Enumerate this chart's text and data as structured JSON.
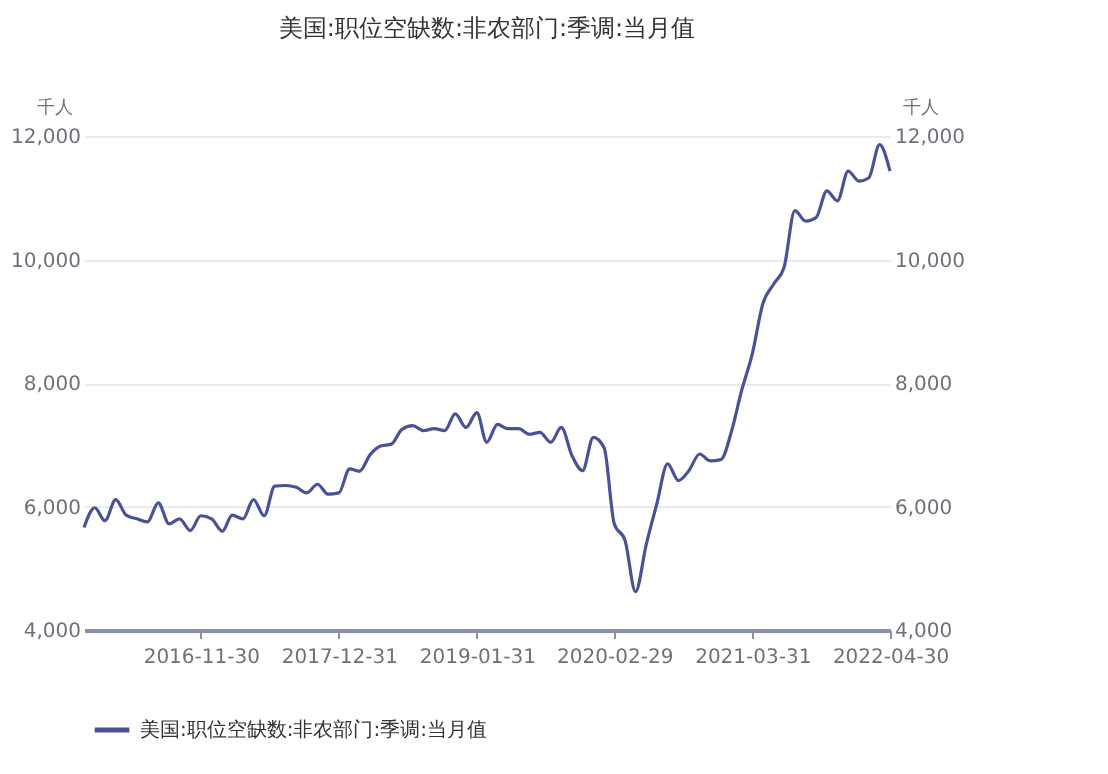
{
  "chart_data": {
    "type": "line",
    "title": "美国:职位空缺数:非农部门:季调:当月值",
    "ylabel": "千人",
    "y2label": "千人",
    "x": [
      "2015-12-31",
      "2016-01-31",
      "2016-02-29",
      "2016-03-31",
      "2016-04-30",
      "2016-05-31",
      "2016-06-30",
      "2016-07-31",
      "2016-08-31",
      "2016-09-30",
      "2016-10-31",
      "2016-11-30",
      "2016-12-31",
      "2017-01-31",
      "2017-02-28",
      "2017-03-31",
      "2017-04-30",
      "2017-05-31",
      "2017-06-30",
      "2017-07-31",
      "2017-08-31",
      "2017-09-30",
      "2017-10-31",
      "2017-11-30",
      "2017-12-31",
      "2018-01-31",
      "2018-02-28",
      "2018-03-31",
      "2018-04-30",
      "2018-05-31",
      "2018-06-30",
      "2018-07-31",
      "2018-08-31",
      "2018-09-30",
      "2018-10-31",
      "2018-11-30",
      "2018-12-31",
      "2019-01-31",
      "2019-02-28",
      "2019-03-31",
      "2019-04-30",
      "2019-05-31",
      "2019-06-30",
      "2019-07-31",
      "2019-08-31",
      "2019-09-30",
      "2019-10-31",
      "2019-11-30",
      "2019-12-31",
      "2020-01-31",
      "2020-02-29",
      "2020-03-31",
      "2020-04-30",
      "2020-05-31",
      "2020-06-30",
      "2020-07-31",
      "2020-08-31",
      "2020-09-30",
      "2020-10-31",
      "2020-11-30",
      "2020-12-31",
      "2021-01-31",
      "2021-02-28",
      "2021-03-31",
      "2021-04-30",
      "2021-05-31",
      "2021-06-30",
      "2021-07-31",
      "2021-08-31",
      "2021-09-30",
      "2021-10-31",
      "2021-11-30",
      "2021-12-31",
      "2022-01-31",
      "2022-02-28",
      "2022-03-31",
      "2022-04-30"
    ],
    "series": [
      {
        "name": "美国:职位空缺数:非农部门:季调:当月值",
        "color": "#4a5297",
        "values": [
          5660,
          5980,
          5770,
          6110,
          5860,
          5800,
          5750,
          6060,
          5720,
          5800,
          5610,
          5850,
          5800,
          5600,
          5860,
          5800,
          6110,
          5850,
          6330,
          6340,
          6310,
          6220,
          6360,
          6200,
          6220,
          6610,
          6570,
          6840,
          6980,
          7010,
          7250,
          7310,
          7230,
          7260,
          7230,
          7500,
          7280,
          7520,
          7040,
          7330,
          7260,
          7260,
          7170,
          7200,
          7040,
          7280,
          6820,
          6580,
          7120,
          6950,
          5720,
          5450,
          4620,
          5390,
          6040,
          6690,
          6420,
          6580,
          6850,
          6740,
          6760,
          7230,
          7870,
          8470,
          9280,
          9600,
          9870,
          10790,
          10620,
          10680,
          11110,
          10950,
          11430,
          11270,
          11320,
          11860,
          11430
        ]
      }
    ],
    "xlim": [
      "2015-12-31",
      "2022-04-30"
    ],
    "xticks": [
      "2016-11-30",
      "2017-12-31",
      "2019-01-31",
      "2020-02-29",
      "2021-03-31",
      "2022-04-30"
    ],
    "ylim": [
      4000,
      12000
    ],
    "yticks": [
      {
        "value": 4000,
        "label": "4,000"
      },
      {
        "value": 6000,
        "label": "6,000"
      },
      {
        "value": 8000,
        "label": "8,000"
      },
      {
        "value": 10000,
        "label": "10,000"
      },
      {
        "value": 12000,
        "label": "12,000"
      }
    ],
    "y2lim": [
      4000,
      12000
    ],
    "y2ticks": [
      {
        "value": 4000,
        "label": "4,000"
      },
      {
        "value": 6000,
        "label": "6,000"
      },
      {
        "value": 8000,
        "label": "8,000"
      },
      {
        "value": 10000,
        "label": "10,000"
      },
      {
        "value": 12000,
        "label": "12,000"
      }
    ],
    "grid": "y",
    "legend": "bottom"
  }
}
